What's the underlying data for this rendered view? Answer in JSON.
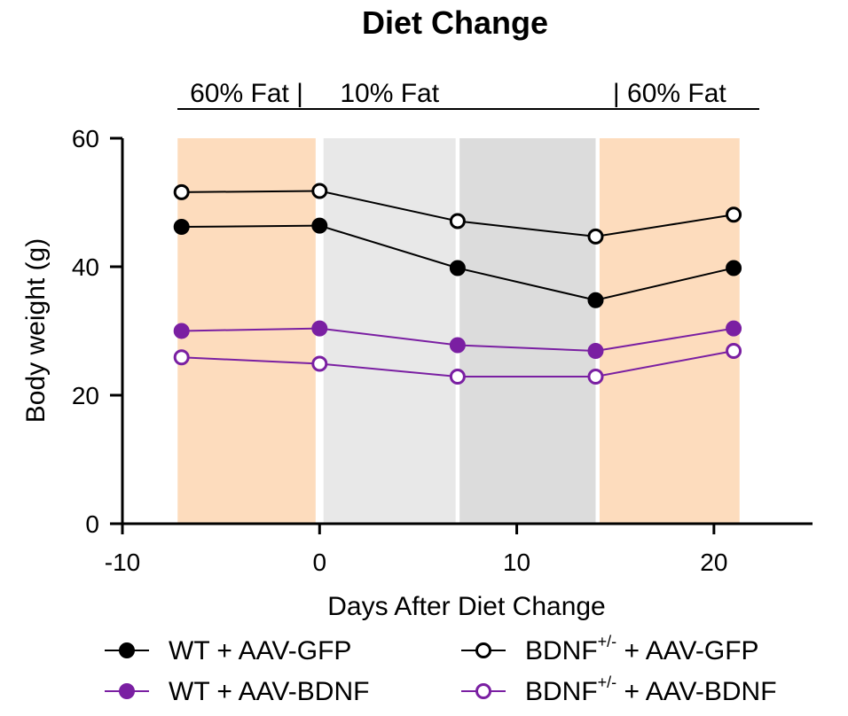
{
  "chart_data": {
    "type": "line",
    "title": "Diet Change",
    "xlabel": "Days After Diet Change",
    "ylabel": "Body weight (g)",
    "xlim": [
      -10,
      25
    ],
    "ylim": [
      0,
      60
    ],
    "xticks": [
      -10,
      0,
      10,
      20
    ],
    "yticks": [
      0,
      20,
      40,
      60
    ],
    "x": [
      -7,
      0,
      7,
      14,
      21
    ],
    "phases": [
      {
        "label": "60% Fat |",
        "start": -7.2,
        "end": -0.2,
        "color": "#fddcbd"
      },
      {
        "label": "10% Fat",
        "start": 0.2,
        "end": 6.9,
        "color": "#e8e8e8"
      },
      {
        "label": "",
        "start": 7.1,
        "end": 14.0,
        "color": "#dcdcdc"
      },
      {
        "label": "| 60% Fat",
        "start": 14.2,
        "end": 21.3,
        "color": "#fddcbd"
      }
    ],
    "series": [
      {
        "name_main": "WT + AAV-GFP",
        "name_sup": "",
        "name_rest": "",
        "color": "#000000",
        "filled": true,
        "values": [
          46.2,
          46.4,
          39.8,
          34.8,
          39.8
        ]
      },
      {
        "name_main": "BDNF",
        "name_sup": "+/-",
        "name_rest": " + AAV-GFP",
        "color": "#000000",
        "filled": false,
        "values": [
          51.6,
          51.8,
          47.1,
          44.7,
          48.1
        ]
      },
      {
        "name_main": "WT + AAV-BDNF",
        "name_sup": "",
        "name_rest": "",
        "color": "#7a1fa2",
        "filled": true,
        "values": [
          30.0,
          30.4,
          27.8,
          26.9,
          30.4
        ]
      },
      {
        "name_main": "BDNF",
        "name_sup": "+/-",
        "name_rest": " + AAV-BDNF",
        "color": "#7a1fa2",
        "filled": false,
        "values": [
          25.9,
          24.9,
          22.9,
          22.9,
          26.9
        ]
      }
    ],
    "legend": "bottom"
  }
}
